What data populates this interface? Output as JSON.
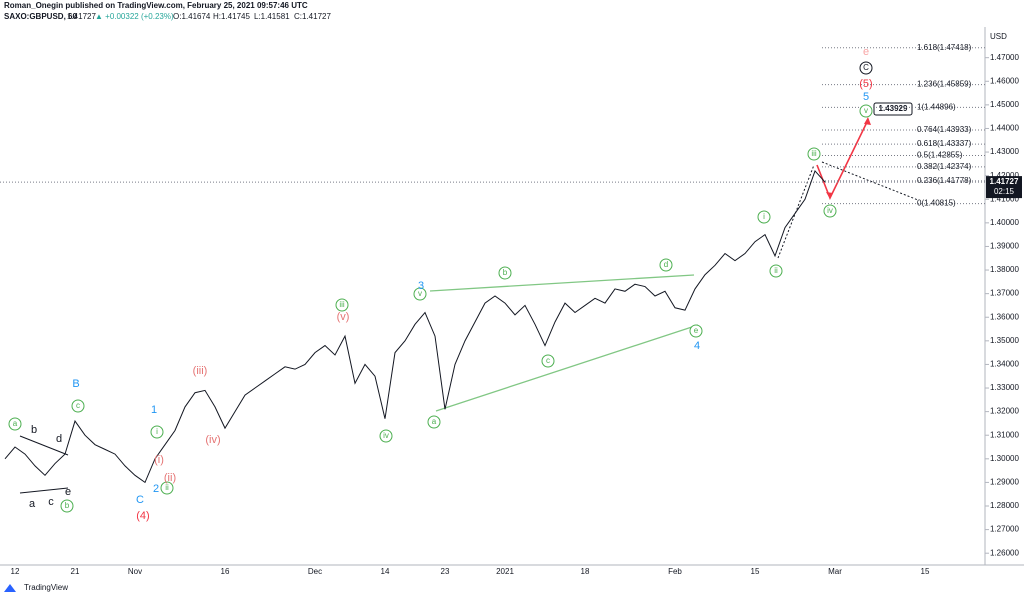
{
  "header": {
    "author_line": "Roman_Onegin published on TradingView.com, February 25, 2021 09:57:46 UTC",
    "symbol": "SAXO:GBPUSD, 60",
    "price": "1.41727",
    "change": "▲ +0.00322 (+0.23%)",
    "open": "O:1.41674",
    "high": "H:1.41745",
    "low": "L:1.41581",
    "close": "C:1.41727"
  },
  "footer": "TradingView",
  "chart_data": {
    "type": "line",
    "color": "#131722",
    "currency": "USD",
    "countdown": "02:15",
    "target": "1.43929",
    "categories": [
      null,
      "12",
      null,
      null,
      null,
      null,
      null,
      "21",
      null,
      null,
      null,
      null,
      null,
      "Nov",
      null,
      null,
      null,
      null,
      null,
      null,
      null,
      null,
      "16",
      null,
      null,
      null,
      null,
      null,
      null,
      null,
      null,
      "Dec",
      null,
      null,
      null,
      null,
      null,
      null,
      "14",
      null,
      null,
      null,
      null,
      null,
      "23",
      null,
      null,
      null,
      null,
      null,
      "2021",
      null,
      null,
      null,
      null,
      null,
      null,
      null,
      "18",
      null,
      null,
      null,
      null,
      null,
      null,
      null,
      null,
      "Feb",
      null,
      null,
      null,
      null,
      null,
      null,
      null,
      "15",
      null,
      null,
      null,
      null,
      null,
      null,
      null,
      "Mar",
      null,
      null,
      null,
      null,
      null,
      null,
      null,
      null,
      "15",
      null,
      null,
      null,
      null,
      null,
      null
    ],
    "values": [
      1.3,
      1.305,
      1.302,
      1.297,
      1.293,
      1.298,
      1.302,
      1.316,
      1.31,
      1.306,
      1.304,
      1.302,
      1.297,
      1.293,
      1.29,
      1.3,
      1.306,
      1.312,
      1.322,
      1.328,
      1.329,
      1.322,
      1.313,
      1.32,
      1.327,
      1.33,
      1.333,
      1.336,
      1.339,
      1.338,
      1.34,
      1.345,
      1.348,
      1.344,
      1.352,
      1.332,
      1.34,
      1.335,
      1.317,
      1.345,
      1.35,
      1.357,
      1.362,
      1.352,
      1.321,
      1.34,
      1.35,
      1.358,
      1.366,
      1.369,
      1.366,
      1.361,
      1.365,
      1.357,
      1.348,
      1.358,
      1.366,
      1.362,
      1.365,
      1.368,
      1.366,
      1.372,
      1.371,
      1.374,
      1.373,
      1.369,
      1.371,
      1.364,
      1.363,
      1.372,
      1.378,
      1.382,
      1.387,
      1.384,
      1.387,
      1.392,
      1.395,
      1.386,
      1.398,
      1.404,
      1.41,
      1.422,
      1.41727,
      null,
      null,
      null,
      null,
      null,
      null,
      null,
      null,
      null,
      null,
      null,
      null,
      null,
      null,
      null,
      null
    ],
    "ylim": [
      1.255,
      1.483
    ],
    "yticks": [
      {
        "value": 1.26,
        "label": "1.26000"
      },
      {
        "value": 1.27,
        "label": "1.27000"
      },
      {
        "value": 1.28,
        "label": "1.28000"
      },
      {
        "value": 1.29,
        "label": "1.29000"
      },
      {
        "value": 1.3,
        "label": "1.30000"
      },
      {
        "value": 1.31,
        "label": "1.31000"
      },
      {
        "value": 1.32,
        "label": "1.32000"
      },
      {
        "value": 1.33,
        "label": "1.33000"
      },
      {
        "value": 1.34,
        "label": "1.34000"
      },
      {
        "value": 1.35,
        "label": "1.35000"
      },
      {
        "value": 1.36,
        "label": "1.36000"
      },
      {
        "value": 1.37,
        "label": "1.37000"
      },
      {
        "value": 1.38,
        "label": "1.38000"
      },
      {
        "value": 1.39,
        "label": "1.39000"
      },
      {
        "value": 1.4,
        "label": "1.40000"
      },
      {
        "value": 1.41,
        "label": "1.41000"
      },
      {
        "value": 1.42,
        "label": "1.42000"
      },
      {
        "value": 1.43,
        "label": "1.43000"
      },
      {
        "value": 1.44,
        "label": "1.44000"
      },
      {
        "value": 1.45,
        "label": "1.45000"
      },
      {
        "value": 1.46,
        "label": "1.46000"
      },
      {
        "value": 1.47,
        "label": "1.47000"
      }
    ],
    "last_price": {
      "value": 1.41727,
      "label": "1.41727"
    },
    "levels": [
      {
        "value": 1.47418,
        "label": "1.618(1.47418)"
      },
      {
        "value": 1.45859,
        "label": "1.236(1.45859)"
      },
      {
        "value": 1.44896,
        "label": "1(1.44896)"
      },
      {
        "value": 1.43933,
        "label": "0.764(1.43933)"
      },
      {
        "value": 1.43337,
        "label": "0.618(1.43337)"
      },
      {
        "value": 1.42855,
        "label": "0.5(1.42855)"
      },
      {
        "value": 1.42374,
        "label": "0.382(1.42374)"
      },
      {
        "value": 1.41778,
        "label": "0.236(1.41778)"
      },
      {
        "value": 1.40815,
        "label": "0(1.40815)"
      }
    ],
    "annotations": [
      {
        "text": "a",
        "color": "#4caf50",
        "circled": true
      },
      {
        "text": "c",
        "color": "#4caf50",
        "circled": true
      },
      {
        "text": "b",
        "color": "#4caf50",
        "circled": true
      },
      {
        "text": "i",
        "color": "#4caf50",
        "circled": true
      },
      {
        "text": "ii",
        "color": "#4caf50",
        "circled": true
      },
      {
        "text": "iii",
        "color": "#4caf50",
        "circled": true
      },
      {
        "text": "iv",
        "color": "#4caf50",
        "circled": true
      },
      {
        "text": "a",
        "color": "#4caf50",
        "circled": true
      },
      {
        "text": "b",
        "color": "#4caf50",
        "circled": true
      },
      {
        "text": "c",
        "color": "#4caf50",
        "circled": true
      },
      {
        "text": "d",
        "color": "#4caf50",
        "circled": true
      },
      {
        "text": "e",
        "color": "#4caf50",
        "circled": true
      },
      {
        "text": "v",
        "color": "#4caf50",
        "circled": true
      },
      {
        "text": "i",
        "color": "#4caf50",
        "circled": true
      },
      {
        "text": "ii",
        "color": "#4caf50",
        "circled": true
      },
      {
        "text": "iii",
        "color": "#4caf50",
        "circled": true
      },
      {
        "text": "iv",
        "color": "#4caf50",
        "circled": true
      },
      {
        "text": "v",
        "color": "#4caf50",
        "circled": true
      },
      {
        "text": "b",
        "color": "#131722",
        "circled": false
      },
      {
        "text": "d",
        "color": "#131722",
        "circled": false
      },
      {
        "text": "a",
        "color": "#131722",
        "circled": false
      },
      {
        "text": "c",
        "color": "#131722",
        "circled": false
      },
      {
        "text": "e",
        "color": "#131722",
        "circled": false
      },
      {
        "text": "B",
        "color": "#2196f3",
        "circled": false
      },
      {
        "text": "1",
        "color": "#2196f3",
        "circled": false
      },
      {
        "text": "C",
        "color": "#2196f3",
        "circled": false
      },
      {
        "text": "2",
        "color": "#2196f3",
        "circled": false
      },
      {
        "text": "3",
        "color": "#2196f3",
        "circled": false
      },
      {
        "text": "4",
        "color": "#2196f3",
        "circled": false
      },
      {
        "text": "5",
        "color": "#2196f3",
        "circled": false
      },
      {
        "text": "(iii)",
        "color": "#e57373",
        "circled": false
      },
      {
        "text": "(iv)",
        "color": "#e57373",
        "circled": false
      },
      {
        "text": "(v)",
        "color": "#e57373",
        "circled": false
      },
      {
        "text": "(i)",
        "color": "#e57373",
        "circled": false
      },
      {
        "text": "(ii)",
        "color": "#e57373",
        "circled": false
      },
      {
        "text": "(4)",
        "color": "#f23645",
        "circled": false
      },
      {
        "text": "(5)",
        "color": "#f23645",
        "circled": false
      },
      {
        "text": "C",
        "color": "#131722",
        "circled": true
      },
      {
        "text": "e",
        "color": "#f8a5a5",
        "circled": false
      }
    ]
  }
}
